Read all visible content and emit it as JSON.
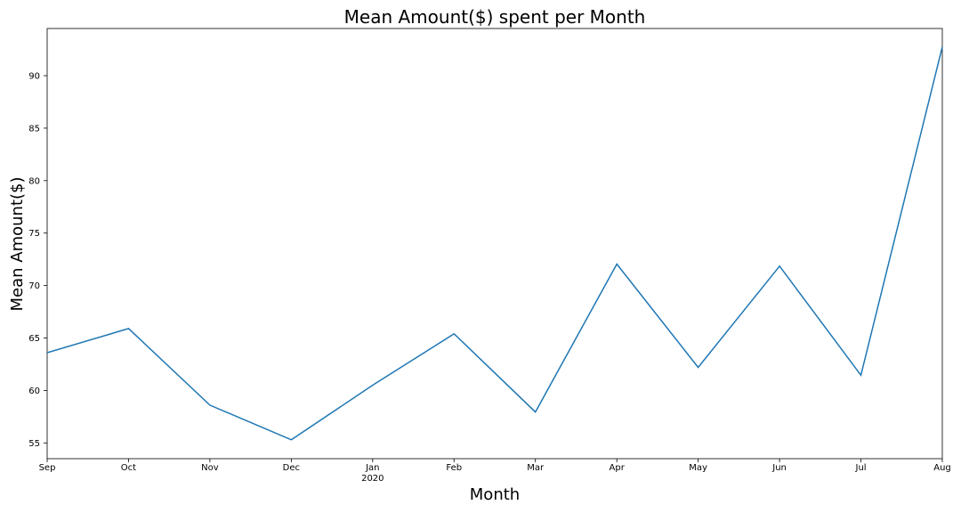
{
  "chart_data": {
    "type": "line",
    "title": "Mean Amount($) spent per Month",
    "xlabel": "Month",
    "ylabel": "Mean Amount($)",
    "categories": [
      "Sep",
      "Oct",
      "Nov",
      "Dec",
      "Jan",
      "Feb",
      "Mar",
      "Apr",
      "May",
      "Jun",
      "Jul",
      "Aug"
    ],
    "year_label": {
      "category": "Jan",
      "text": "2020"
    },
    "series": [
      {
        "color": "#1f77b4",
        "values": [
          63.6,
          65.9,
          58.6,
          55.3,
          60.5,
          65.4,
          57.95,
          72.05,
          62.2,
          71.85,
          61.45,
          92.75
        ]
      }
    ],
    "yticks": [
      55,
      60,
      65,
      70,
      75,
      80,
      85,
      90
    ],
    "ylim": [
      53.5,
      94.5
    ],
    "grid": false
  }
}
